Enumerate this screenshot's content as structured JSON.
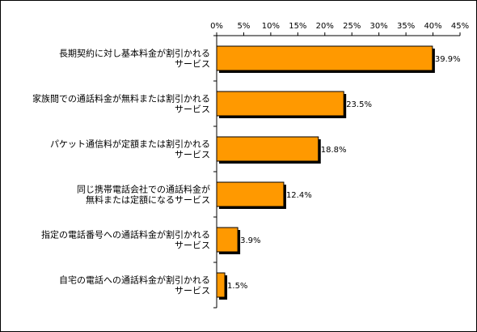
{
  "chart_data": {
    "type": "bar",
    "orientation": "horizontal",
    "categories": [
      "長期契約に対し基本料金が割引かれるサービス",
      "家族間での通話料金が無料または割引かれるサービス",
      "パケット通信料が定額または割引かれるサービス",
      "同じ携帯電話会社での通話料金が無料または定額になるサービス",
      "指定の電話番号への通話料金が割引かれるサービス",
      "自宅の電話への通話料金が割引かれるサービス"
    ],
    "category_lines": [
      [
        "長期契約に対し基本料金が割引かれる",
        "サービス"
      ],
      [
        "家族間での通話料金が無料または割引かれる",
        "サービス"
      ],
      [
        "パケット通信料が定額または割引かれる",
        "サービス"
      ],
      [
        "同じ携帯電話会社での通話料金が",
        "無料または定額になるサービス"
      ],
      [
        "指定の電話番号への通話料金が割引かれる",
        "サービス"
      ],
      [
        "自宅の電話への通話料金が割引かれる",
        "サービス"
      ]
    ],
    "values": [
      39.9,
      23.5,
      18.8,
      12.4,
      3.9,
      1.5
    ],
    "value_labels": [
      "39.9%",
      "23.5%",
      "18.8%",
      "12.4%",
      "3.9%",
      "1.5%"
    ],
    "xlim": [
      0,
      45
    ],
    "xticks": [
      0,
      5,
      10,
      15,
      20,
      25,
      30,
      35,
      40,
      45
    ],
    "xtick_labels": [
      "0%",
      "5%",
      "10%",
      "15%",
      "20%",
      "25%",
      "30%",
      "35%",
      "40%",
      "45%"
    ],
    "axis_position": "top",
    "grid": false,
    "colors": {
      "bar": "#FF9900",
      "bar_edge": "#000000",
      "shadow": "#000000"
    }
  }
}
